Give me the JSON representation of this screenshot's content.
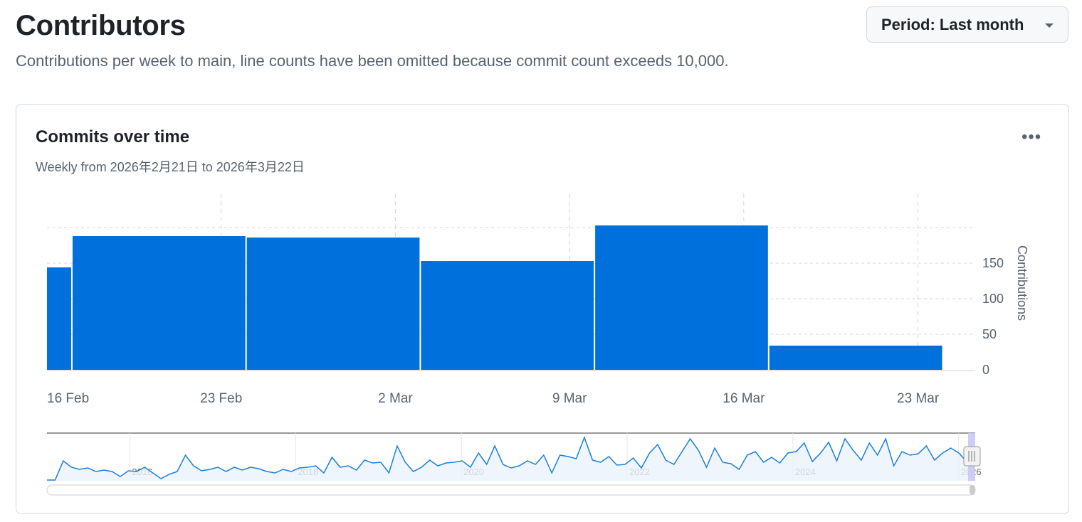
{
  "header": {
    "title": "Contributors",
    "description": "Contributions per week to main, line counts have been omitted because commit count exceeds 10,000.",
    "period_label": "Period: Last month"
  },
  "card": {
    "title": "Commits over time",
    "subtitle": "Weekly from 2026年2月21日 to 2026年3月22日",
    "more_icon": "kebab-horizontal-icon"
  },
  "chart_data": {
    "type": "bar",
    "ylabel": "Contributions",
    "ylim": [
      0,
      245
    ],
    "yticks": [
      0,
      50,
      100,
      150
    ],
    "ygrid": [
      50,
      100,
      150,
      200
    ],
    "xlim": [
      "2026-02-16",
      "2026-03-24"
    ],
    "xticks": [
      {
        "date": "2026-02-16",
        "label": "16 Feb"
      },
      {
        "date": "2026-02-23",
        "label": "23 Feb"
      },
      {
        "date": "2026-03-02",
        "label": "2 Mar"
      },
      {
        "date": "2026-03-09",
        "label": "9 Mar"
      },
      {
        "date": "2026-03-16",
        "label": "16 Mar"
      },
      {
        "date": "2026-03-23",
        "label": "23 Mar"
      }
    ],
    "bars": [
      {
        "start": "2026-02-10",
        "value": 144
      },
      {
        "start": "2026-02-17",
        "value": 188
      },
      {
        "start": "2026-02-24",
        "value": 186
      },
      {
        "start": "2026-03-03",
        "value": 153
      },
      {
        "start": "2026-03-10",
        "value": 203
      },
      {
        "start": "2026-03-17",
        "value": 34
      }
    ],
    "bar_color": "#0070dd",
    "grid": true,
    "navigator": {
      "type": "area",
      "range": [
        2015.0,
        2026.2
      ],
      "year_labels": [
        "2016",
        "2018",
        "2020",
        "2022",
        "2024",
        "2026"
      ],
      "values": [
        0,
        0,
        27,
        18,
        15,
        17,
        12,
        14,
        12,
        5,
        13,
        12,
        18,
        10,
        2,
        8,
        12,
        35,
        20,
        13,
        15,
        18,
        12,
        18,
        14,
        18,
        16,
        12,
        10,
        15,
        12,
        17,
        18,
        20,
        10,
        32,
        18,
        20,
        14,
        28,
        24,
        25,
        10,
        48,
        25,
        12,
        18,
        28,
        20,
        24,
        25,
        27,
        18,
        38,
        22,
        48,
        22,
        17,
        20,
        27,
        22,
        35,
        10,
        35,
        33,
        30,
        60,
        28,
        25,
        33,
        21,
        22,
        31,
        17,
        38,
        50,
        28,
        22,
        40,
        58,
        42,
        18,
        45,
        25,
        23,
        15,
        35,
        40,
        25,
        32,
        24,
        38,
        40,
        52,
        26,
        38,
        53,
        27,
        58,
        42,
        28,
        52,
        35,
        58,
        20,
        40,
        35,
        37,
        48,
        28,
        38,
        45,
        38,
        25,
        42
      ],
      "line_color": "#1a7fe0",
      "selection_color": "#c8c8f4"
    }
  }
}
